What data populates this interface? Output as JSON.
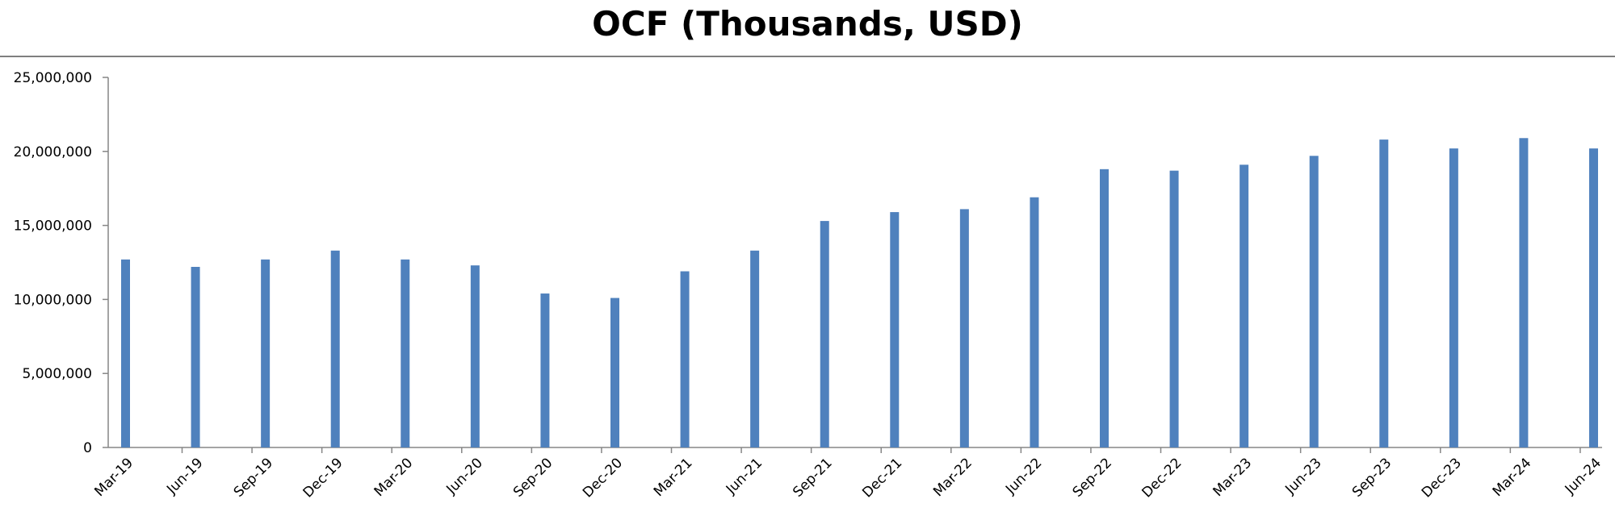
{
  "chart_data": {
    "type": "bar",
    "title": "OCF (Thousands, USD)",
    "xlabel": "",
    "ylabel": "",
    "ylim": [
      0,
      25000000
    ],
    "yticks": [
      0,
      5000000,
      10000000,
      15000000,
      20000000,
      25000000
    ],
    "ytick_labels": [
      "0",
      "5,000,000",
      "10,000,000",
      "15,000,000",
      "20,000,000",
      "25,000,000"
    ],
    "grid": false,
    "legend": "none",
    "bar_color": "#4f81bd",
    "categories": [
      "Mar-19",
      "Jun-19",
      "Sep-19",
      "Dec-19",
      "Mar-20",
      "Jun-20",
      "Sep-20",
      "Dec-20",
      "Mar-21",
      "Jun-21",
      "Sep-21",
      "Dec-21",
      "Mar-22",
      "Jun-22",
      "Sep-22",
      "Dec-22",
      "Mar-23",
      "Jun-23",
      "Sep-23",
      "Dec-23",
      "Mar-24",
      "Jun-24"
    ],
    "values": [
      12700000,
      12200000,
      12700000,
      13300000,
      12700000,
      12300000,
      10400000,
      10100000,
      11900000,
      13300000,
      15300000,
      15900000,
      16100000,
      16900000,
      18800000,
      18700000,
      19100000,
      19700000,
      20800000,
      20200000,
      20900000,
      20200000
    ]
  }
}
